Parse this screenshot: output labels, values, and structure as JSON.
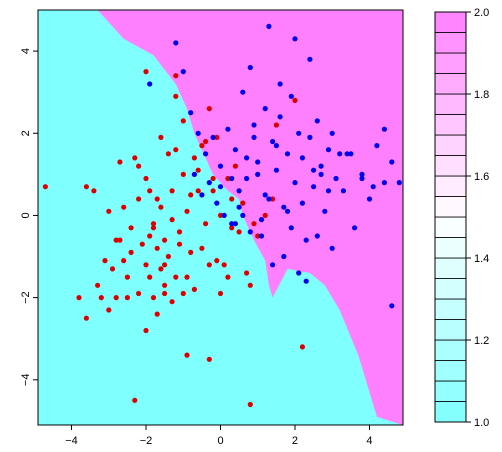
{
  "chart_data": [
    {
      "type": "scatter",
      "title": "",
      "xlabel": "",
      "ylabel": "",
      "xlim": [
        -4.9,
        4.9
      ],
      "ylim": [
        -5.1,
        5.0
      ],
      "xticks": [
        -4,
        -2,
        0,
        2,
        4
      ],
      "yticks": [
        -4,
        -2,
        0,
        2,
        4
      ],
      "tick_labels": {
        "x": [
          "−4",
          "−2",
          "0",
          "2",
          "4"
        ],
        "y": [
          "−4",
          "−2",
          "0",
          "2",
          "4"
        ]
      },
      "grid": false,
      "legend": "none",
      "background_regions": {
        "class_1_color": "#80ffff",
        "class_2_color": "#ff80ff",
        "description_of_boundary_polygon_for_class_2_in_data_units": [
          [
            -4.9,
            5.0
          ],
          [
            -3.3,
            5.0
          ],
          [
            -2.6,
            4.3
          ],
          [
            -1.8,
            3.9
          ],
          [
            -1.2,
            3.2
          ],
          [
            -0.9,
            2.6
          ],
          [
            -0.7,
            2.0
          ],
          [
            -0.4,
            1.4
          ],
          [
            -0.2,
            1.0
          ],
          [
            0.2,
            0.6
          ],
          [
            0.5,
            0.4
          ],
          [
            0.6,
            0.0
          ],
          [
            0.9,
            -0.6
          ],
          [
            1.2,
            -1.1
          ],
          [
            1.3,
            -1.7
          ],
          [
            1.4,
            -2.0
          ],
          [
            1.8,
            -1.3
          ],
          [
            2.4,
            -1.4
          ],
          [
            2.8,
            -1.7
          ],
          [
            3.2,
            -2.3
          ],
          [
            3.7,
            -3.4
          ],
          [
            4.2,
            -4.9
          ],
          [
            4.9,
            -5.1
          ],
          [
            4.9,
            5.0
          ]
        ]
      },
      "series": [
        {
          "name": "",
          "color": "#dd0000",
          "x": [
            -4.7,
            -3.8,
            -3.6,
            -3.4,
            -3.3,
            -3.2,
            -3.1,
            -3.0,
            -2.9,
            -2.8,
            -2.7,
            -2.6,
            -2.5,
            -2.5,
            -2.4,
            -2.3,
            -2.2,
            -2.2,
            -2.1,
            -2.0,
            -2.0,
            -1.9,
            -1.9,
            -1.8,
            -1.8,
            -1.7,
            -1.7,
            -1.6,
            -1.6,
            -1.5,
            -1.5,
            -1.4,
            -1.3,
            -1.3,
            -1.2,
            -1.2,
            -1.1,
            -1.0,
            -1.0,
            -0.9,
            -0.9,
            -0.8,
            -0.7,
            -0.6,
            -0.5,
            -0.4,
            -0.3,
            -0.2,
            -0.1,
            0.0,
            0.1,
            0.2,
            0.3,
            0.5,
            0.6,
            0.7,
            0.8,
            0.9,
            1.0,
            1.2,
            1.4,
            2.0,
            -3.6,
            -3.0,
            -2.8,
            -2.6,
            -2.2,
            -2.0,
            -1.6,
            -1.4,
            -1.2,
            -1.0,
            -0.7,
            -0.5,
            -0.3,
            -0.1,
            0.2,
            0.4,
            -2.4,
            -1.9,
            -1.5,
            -1.1,
            -0.8,
            -0.4,
            0.0,
            -2.7,
            -2.3,
            -1.7,
            -1.3,
            -0.6,
            -0.2,
            0.3,
            -1.8,
            -1.5,
            -0.9,
            -1.2,
            -0.3,
            -2.0,
            1.5,
            2.2,
            0.8
          ],
          "y": [
            0.7,
            -2.0,
            -2.5,
            0.6,
            -1.7,
            -2.0,
            -1.1,
            -2.3,
            -1.3,
            -2.0,
            -0.6,
            -1.1,
            -1.5,
            -2.0,
            -0.3,
            -4.5,
            0.4,
            -1.9,
            -0.7,
            -1.2,
            -2.8,
            0.6,
            -1.5,
            -0.3,
            -2.0,
            -0.8,
            -2.4,
            0.2,
            -1.3,
            -0.6,
            -1.9,
            -1.0,
            -0.1,
            -2.1,
            1.6,
            -1.5,
            -0.7,
            1.0,
            -1.9,
            0.1,
            -1.5,
            0.5,
            -1.8,
            1.1,
            -0.8,
            1.8,
            -1.2,
            0.6,
            -1.1,
            0.0,
            -1.2,
            -1.5,
            -0.3,
            -0.4,
            0.3,
            -1.4,
            -1.7,
            -0.2,
            -0.5,
            0.0,
            0.4,
            2.8,
            0.7,
            0.1,
            -0.6,
            0.2,
            1.2,
            0.9,
            1.9,
            1.5,
            2.9,
            2.3,
            1.4,
            1.7,
            2.6,
            1.9,
            0.9,
            1.2,
            -0.9,
            -0.5,
            -1.2,
            -0.4,
            -0.9,
            -0.2,
            -1.9,
            1.3,
            1.4,
            0.4,
            0.6,
            0.6,
            0.9,
            0.4,
            -0.2,
            -1.7,
            -3.4,
            3.4,
            -3.5,
            3.5,
            2.2,
            -3.2,
            -4.6
          ],
          "note": ""
        },
        {
          "name": "",
          "color": "#0000ee",
          "x": [
            -1.9,
            -1.2,
            -1.0,
            -0.8,
            -0.7,
            -0.6,
            -0.5,
            -0.4,
            -0.3,
            -0.2,
            -0.1,
            0.0,
            0.1,
            0.2,
            0.3,
            0.4,
            0.5,
            0.6,
            0.7,
            0.8,
            0.9,
            1.0,
            1.1,
            1.2,
            1.3,
            1.4,
            1.5,
            1.6,
            1.7,
            1.8,
            1.9,
            2.0,
            2.1,
            2.2,
            2.3,
            2.4,
            2.5,
            2.6,
            2.7,
            2.8,
            2.9,
            3.0,
            3.1,
            3.2,
            3.3,
            3.4,
            3.6,
            3.8,
            4.0,
            4.2,
            4.4,
            4.6,
            4.8,
            1.3,
            2.0,
            0.8,
            1.6,
            2.4,
            3.5,
            1.0,
            0.5,
            1.9,
            2.7,
            0.3,
            1.2,
            2.2,
            0.7,
            1.5,
            2.9,
            0.0,
            1.8,
            2.5,
            0.9,
            1.4,
            2.1,
            0.4,
            3.0,
            1.1,
            2.6,
            0.6,
            1.7,
            2.3,
            3.8,
            4.1,
            4.6,
            4.4
          ],
          "y": [
            3.2,
            4.2,
            3.5,
            2.5,
            1.0,
            2.0,
            0.5,
            1.5,
            0.8,
            1.9,
            0.3,
            1.2,
            0.0,
            2.1,
            -0.2,
            1.6,
            0.6,
            3.0,
            0.9,
            -0.4,
            2.2,
            1.3,
            -0.1,
            2.6,
            0.4,
            1.8,
            1.1,
            2.4,
            0.2,
            1.5,
            2.9,
            0.8,
            2.0,
            1.4,
            -0.6,
            1.9,
            0.7,
            2.3,
            1.2,
            0.1,
            1.6,
            2.0,
            0.9,
            1.5,
            0.6,
            1.5,
            -0.3,
            0.9,
            0.4,
            1.7,
            0.8,
            1.3,
            0.8,
            4.6,
            4.3,
            3.6,
            3.2,
            3.8,
            1.5,
            1.0,
            0.2,
            -0.3,
            1.0,
            0.9,
            0.5,
            0.3,
            1.4,
            1.7,
            0.6,
            0.7,
            0.1,
            1.1,
            1.9,
            -1.2,
            -1.4,
            -0.2,
            -0.8,
            -0.5,
            -0.5,
            0.0,
            -1.0,
            -1.6,
            1.0,
            0.7,
            -2.2,
            2.1
          ],
          "note": ""
        }
      ]
    },
    {
      "type": "heatmap",
      "title": "",
      "ylim": [
        1.0,
        2.0
      ],
      "yticks": [
        1.0,
        1.2,
        1.4,
        1.6,
        1.8,
        2.0
      ],
      "tick_labels": {
        "y": [
          "1.0",
          "1.2",
          "1.4",
          "1.6",
          "1.8",
          "2.0"
        ]
      },
      "n_bins": 20,
      "low_color": "#80ffff",
      "mid_color": "#ffffff",
      "high_color": "#ff80ff"
    }
  ]
}
